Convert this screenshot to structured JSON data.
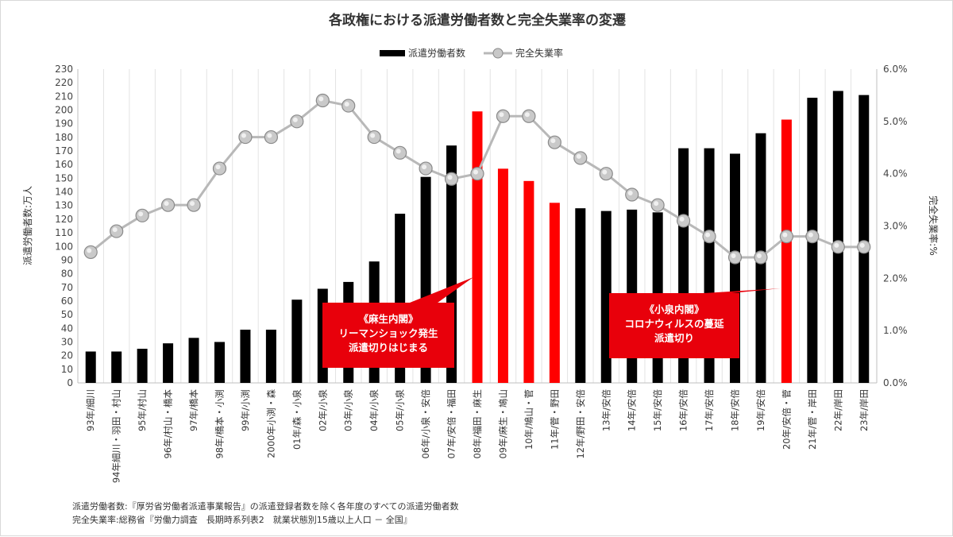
{
  "chart_data": {
    "type": "bar+line",
    "title": "各政権における派遣労働者数と完全失業率の変遷",
    "legend": {
      "placement": "top-center",
      "items": [
        "派遣労働者数",
        "完全失業率"
      ]
    },
    "y_left": {
      "label": "派遣労働者数:万人",
      "range": [
        0,
        230
      ],
      "ticks": [
        0,
        10,
        20,
        30,
        40,
        50,
        60,
        70,
        80,
        90,
        100,
        110,
        120,
        130,
        140,
        150,
        160,
        170,
        180,
        190,
        200,
        210,
        220,
        230
      ]
    },
    "y_right": {
      "label": "完全失業率:%",
      "range": [
        0,
        6
      ],
      "ticks": [
        "0.0%",
        "1.0%",
        "2.0%",
        "3.0%",
        "4.0%",
        "5.0%",
        "6.0%"
      ]
    },
    "grid": "vertical",
    "categories": [
      "93年/細川",
      "94年細川・羽田・村山",
      "95年/村山",
      "96年/村山・橋本",
      "97年/橋本",
      "98年/橋本・小渕",
      "99年/小渕",
      "2000年小渕・森",
      "01年/森・小泉",
      "02年/小泉",
      "03年/小泉",
      "04年/小泉",
      "05年/小泉",
      "06年/小泉・安倍",
      "07年/安倍・福田",
      "08年/福田・麻生",
      "09年/麻生・鳩山",
      "10年/鳩山・菅",
      "11年/菅・野田",
      "12年/野田・安倍",
      "13年/安倍",
      "14年/安倍",
      "15年/安倍",
      "16年/安倍",
      "17年/安倍",
      "18年/安倍",
      "19年/安倍",
      "20年/安倍・菅",
      "21年/菅・岸田",
      "22年/岸田",
      "23年/岸田"
    ],
    "series": [
      {
        "name": "派遣労働者数",
        "type": "bar",
        "axis": "left",
        "color": "#000000",
        "highlight_color": "#ff0000",
        "highlight_indices": [
          15,
          16,
          17,
          18,
          27
        ],
        "values": [
          23,
          23,
          25,
          29,
          33,
          30,
          39,
          39,
          61,
          69,
          74,
          89,
          124,
          151,
          174,
          199,
          157,
          148,
          132,
          128,
          126,
          127,
          125,
          172,
          172,
          168,
          183,
          193,
          209,
          214,
          211
        ]
      },
      {
        "name": "完全失業率",
        "type": "line",
        "axis": "right",
        "color": "#b8b8b8",
        "values": [
          2.5,
          2.9,
          3.2,
          3.4,
          3.4,
          4.1,
          4.7,
          4.7,
          5.0,
          5.4,
          5.3,
          4.7,
          4.4,
          4.1,
          3.9,
          4.0,
          5.1,
          5.1,
          4.6,
          4.3,
          4.0,
          3.6,
          3.4,
          3.1,
          2.8,
          2.4,
          2.4,
          2.8,
          2.8,
          2.6,
          2.6
        ]
      }
    ],
    "annotations": [
      {
        "target_index": 15,
        "lines": [
          "《麻生内閣》",
          "リーマンショック発生",
          "派遣切りはじまる"
        ]
      },
      {
        "target_index": 27,
        "lines": [
          "《小泉内閣》",
          "コロナウィルスの蔓延",
          "派遣切り"
        ]
      }
    ]
  },
  "sources": [
    "派遣労働者数:『厚労省労働者派遣事業報告』の派遣登録者数を除く各年度のすべての派遣労働者数",
    "完全失業率:総務省『労働力調査　長期時系列表2　就業状態別15歳以上人口 － 全国』"
  ]
}
